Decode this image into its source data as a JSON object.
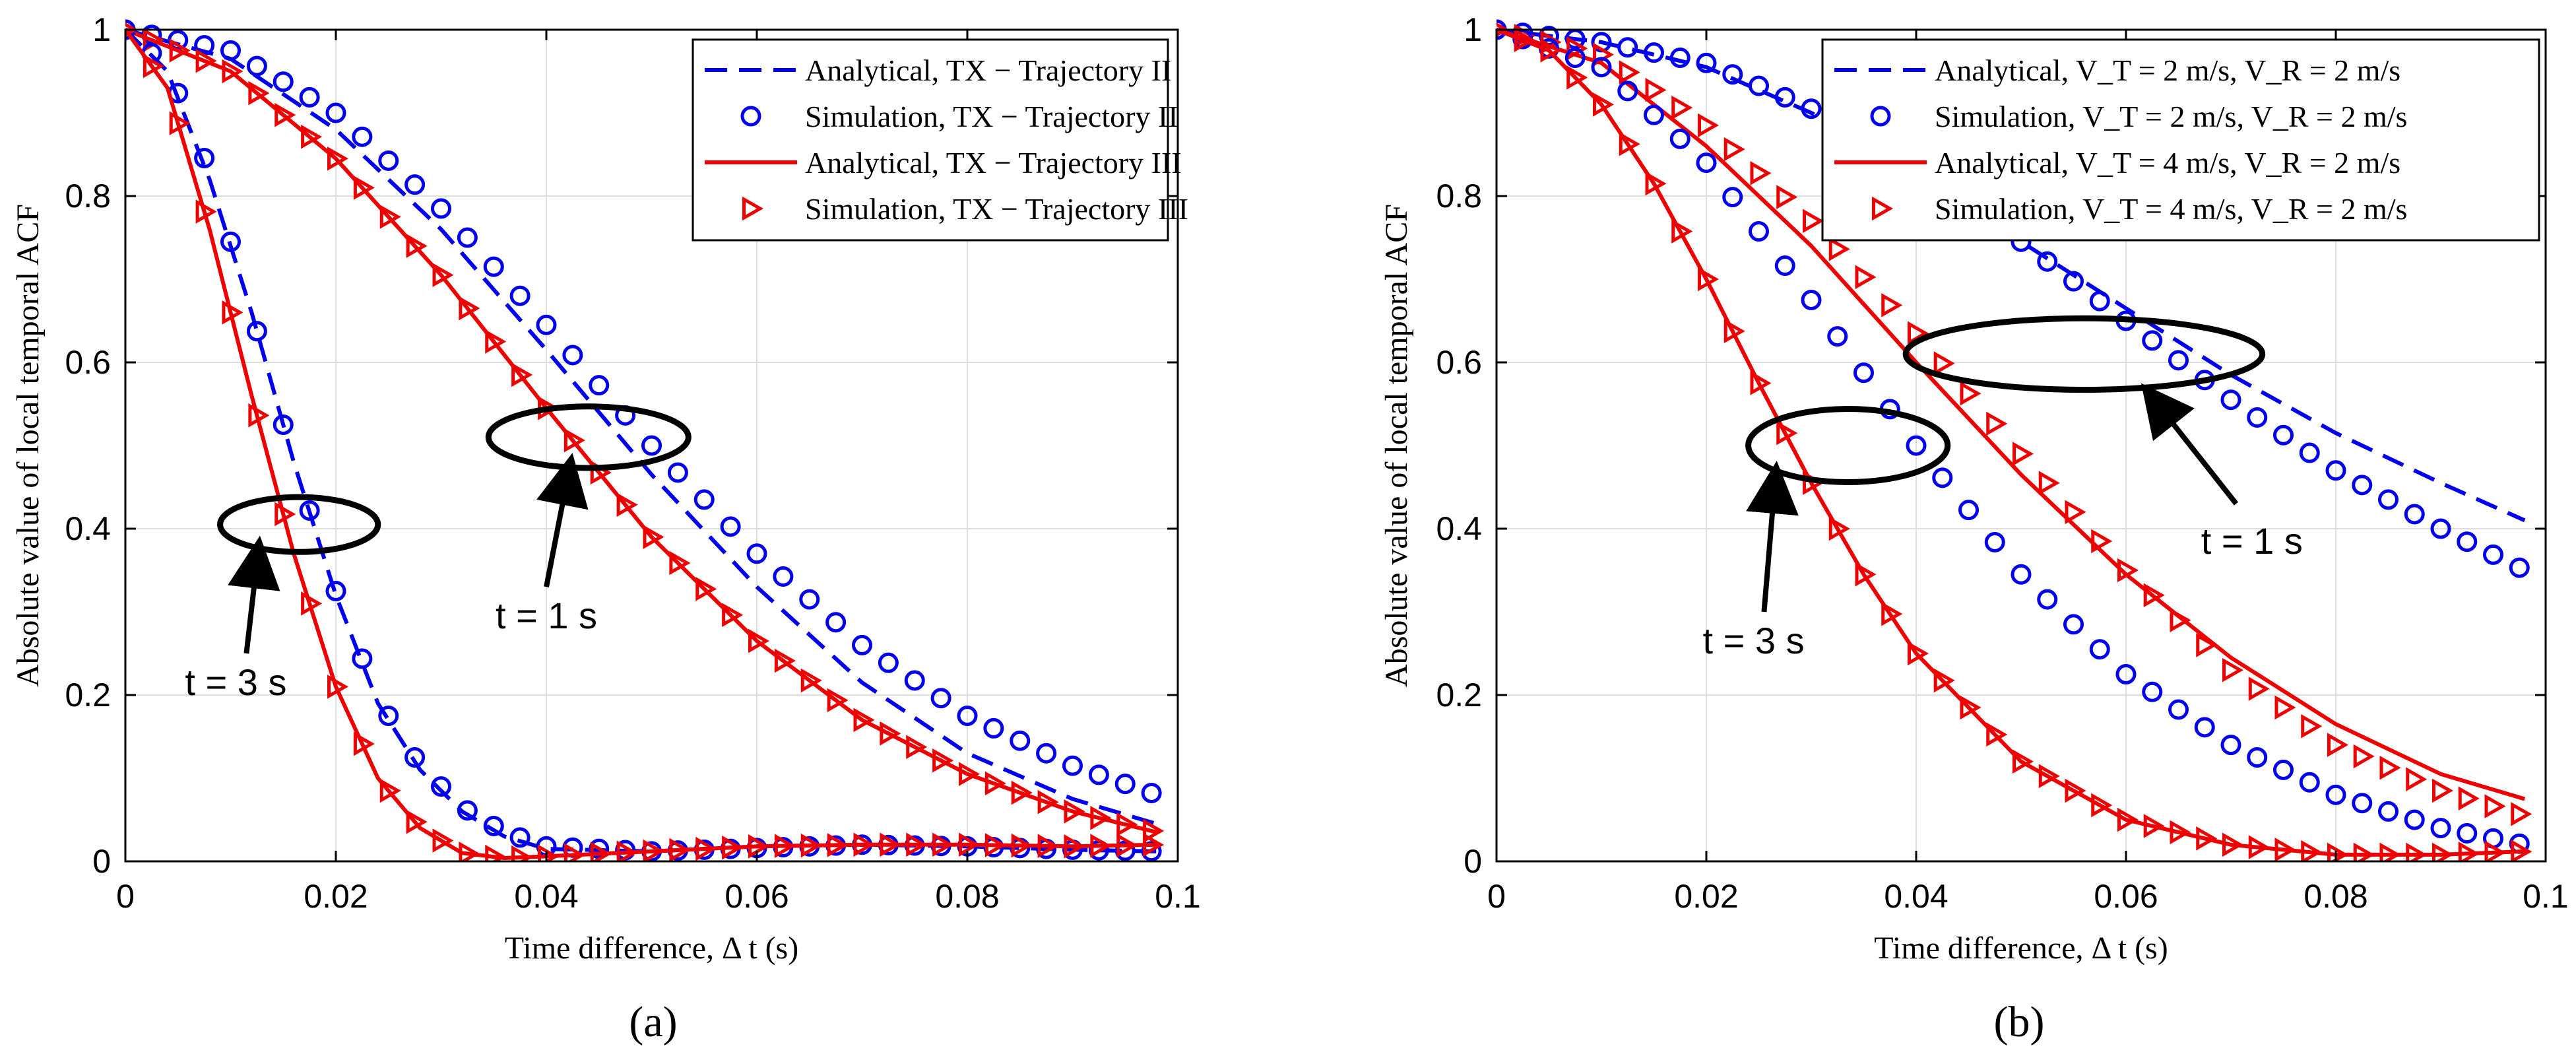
{
  "colors": {
    "blue": "#0000ee",
    "red": "#ee0000",
    "black": "#000000",
    "grid": "#dedede"
  },
  "chart_data": [
    {
      "type": "line",
      "panel_label": "(a)",
      "xlabel": "Time difference, Δ t (s)",
      "ylabel": "Absolute value of local temporal ACF",
      "xlim": [
        0,
        0.1
      ],
      "ylim": [
        0,
        1
      ],
      "xticks": [
        0,
        0.02,
        0.04,
        0.06,
        0.08,
        0.1
      ],
      "yticks": [
        0,
        0.2,
        0.4,
        0.6,
        0.8,
        1
      ],
      "xtick_labels": [
        "0",
        "0.02",
        "0.04",
        "0.06",
        "0.08",
        "0.1"
      ],
      "ytick_labels": [
        "0",
        "0.2",
        "0.4",
        "0.6",
        "0.8",
        "1"
      ],
      "grid": true,
      "legend_position": "top-right",
      "legend": [
        {
          "label": "Analytical, TX − Trajectory II",
          "color": "blue",
          "style": "dashed"
        },
        {
          "label": "Simulation, TX − Trajectory II",
          "color": "blue",
          "style": "circle"
        },
        {
          "label": "Analytical, TX − Trajectory III",
          "color": "red",
          "style": "solid"
        },
        {
          "label": "Simulation, TX − Trajectory III",
          "color": "red",
          "style": "triangle"
        }
      ],
      "series": [
        {
          "name": "Analytical, TX − Trajectory II (t = 1 s)",
          "color": "blue",
          "style": "dashed",
          "x": [
            0,
            0.01,
            0.02,
            0.03,
            0.04,
            0.05,
            0.06,
            0.07,
            0.08,
            0.09,
            0.098
          ],
          "y": [
            1,
            0.965,
            0.88,
            0.76,
            0.615,
            0.465,
            0.33,
            0.215,
            0.13,
            0.075,
            0.045
          ]
        },
        {
          "name": "Simulation, TX − Trajectory II (t = 1 s)",
          "color": "blue",
          "style": "circle",
          "x": [
            0,
            0.01,
            0.02,
            0.03,
            0.04,
            0.05,
            0.06,
            0.07,
            0.08,
            0.09,
            0.098
          ],
          "y": [
            1,
            0.975,
            0.9,
            0.785,
            0.645,
            0.5,
            0.37,
            0.26,
            0.175,
            0.115,
            0.08
          ]
        },
        {
          "name": "Analytical, TX − Trajectory III (t = 1 s)",
          "color": "red",
          "style": "solid",
          "x": [
            0,
            0.01,
            0.02,
            0.03,
            0.04,
            0.05,
            0.06,
            0.07,
            0.08,
            0.09,
            0.098
          ],
          "y": [
            1,
            0.95,
            0.845,
            0.705,
            0.545,
            0.39,
            0.265,
            0.17,
            0.105,
            0.06,
            0.035
          ]
        },
        {
          "name": "Simulation, TX − Trajectory III (t = 1 s)",
          "color": "red",
          "style": "triangle",
          "x": [
            0,
            0.01,
            0.02,
            0.03,
            0.04,
            0.05,
            0.06,
            0.07,
            0.08,
            0.09,
            0.098
          ],
          "y": [
            1,
            0.95,
            0.845,
            0.705,
            0.545,
            0.39,
            0.265,
            0.17,
            0.105,
            0.06,
            0.035
          ]
        },
        {
          "name": "Analytical, TX − Trajectory II (t = 3 s)",
          "color": "blue",
          "style": "dashed",
          "x": [
            0,
            0.004,
            0.008,
            0.012,
            0.016,
            0.02,
            0.024,
            0.028,
            0.032,
            0.036,
            0.04,
            0.05,
            0.06,
            0.07,
            0.08,
            0.09,
            0.098
          ],
          "y": [
            1,
            0.95,
            0.82,
            0.66,
            0.48,
            0.32,
            0.19,
            0.11,
            0.06,
            0.03,
            0.015,
            0.012,
            0.018,
            0.02,
            0.018,
            0.014,
            0.012
          ]
        },
        {
          "name": "Simulation, TX − Trajectory II (t = 3 s)",
          "color": "blue",
          "style": "circle",
          "x": [
            0,
            0.004,
            0.008,
            0.012,
            0.016,
            0.02,
            0.024,
            0.028,
            0.032,
            0.036,
            0.04,
            0.05,
            0.06,
            0.07,
            0.08,
            0.09,
            0.098
          ],
          "y": [
            1,
            0.955,
            0.83,
            0.66,
            0.48,
            0.325,
            0.195,
            0.115,
            0.065,
            0.035,
            0.018,
            0.012,
            0.016,
            0.02,
            0.018,
            0.014,
            0.012
          ]
        },
        {
          "name": "Analytical, TX − Trajectory III (t = 3 s)",
          "color": "red",
          "style": "solid",
          "x": [
            0,
            0.004,
            0.008,
            0.012,
            0.016,
            0.02,
            0.024,
            0.028,
            0.032,
            0.036,
            0.04,
            0.05,
            0.06,
            0.07,
            0.08,
            0.09,
            0.098
          ],
          "y": [
            1,
            0.93,
            0.76,
            0.56,
            0.37,
            0.21,
            0.1,
            0.04,
            0.01,
            0.004,
            0.006,
            0.012,
            0.018,
            0.02,
            0.02,
            0.018,
            0.02
          ]
        },
        {
          "name": "Simulation, TX − Trajectory III (t = 3 s)",
          "color": "red",
          "style": "triangle",
          "x": [
            0,
            0.004,
            0.008,
            0.012,
            0.016,
            0.02,
            0.024,
            0.028,
            0.032,
            0.036,
            0.04,
            0.05,
            0.06,
            0.07,
            0.08,
            0.09,
            0.098
          ],
          "y": [
            1,
            0.93,
            0.76,
            0.56,
            0.37,
            0.21,
            0.1,
            0.04,
            0.01,
            0.004,
            0.006,
            0.012,
            0.018,
            0.02,
            0.02,
            0.018,
            0.02
          ]
        }
      ],
      "annotations": [
        {
          "text": "t = 1 s",
          "ellipse_center": [
            0.044,
            0.51
          ],
          "ellipse_radii": [
            0.0095,
            0.037
          ],
          "arrow_from": [
            0.04,
            0.33
          ],
          "arrow_to": [
            0.042,
            0.46
          ],
          "text_at": [
            0.04,
            0.28
          ]
        },
        {
          "text": "t = 3 s",
          "ellipse_center": [
            0.0165,
            0.405
          ],
          "ellipse_radii": [
            0.0075,
            0.033
          ],
          "arrow_from": [
            0.0115,
            0.25
          ],
          "arrow_to": [
            0.0125,
            0.36
          ],
          "text_at": [
            0.0105,
            0.2
          ]
        }
      ]
    },
    {
      "type": "line",
      "panel_label": "(b)",
      "xlabel": "Time difference, Δ t (s)",
      "ylabel": "Absolute value of local temporal ACF",
      "xlim": [
        0,
        0.1
      ],
      "ylim": [
        0,
        1
      ],
      "xticks": [
        0,
        0.02,
        0.04,
        0.06,
        0.08,
        0.1
      ],
      "yticks": [
        0,
        0.2,
        0.4,
        0.6,
        0.8,
        1
      ],
      "xtick_labels": [
        "0",
        "0.02",
        "0.04",
        "0.06",
        "0.08",
        "0.1"
      ],
      "ytick_labels": [
        "0",
        "0.2",
        "0.4",
        "0.6",
        "0.8",
        "1"
      ],
      "grid": true,
      "legend_position": "top-right",
      "legend": [
        {
          "label": "Analytical, V_T = 2 m/s, V_R = 2 m/s",
          "color": "blue",
          "style": "dashed"
        },
        {
          "label": "Simulation, V_T = 2 m/s, V_R = 2 m/s",
          "color": "blue",
          "style": "circle"
        },
        {
          "label": "Analytical, V_T = 4 m/s, V_R = 2 m/s",
          "color": "red",
          "style": "solid"
        },
        {
          "label": "Simulation, V_T = 4 m/s, V_R = 2 m/s",
          "color": "red",
          "style": "triangle"
        }
      ],
      "series": [
        {
          "name": "Analytical, V_T = 2 m/s, V_R = 2 m/s (t = 1 s)",
          "color": "blue",
          "style": "dashed",
          "x": [
            0,
            0.01,
            0.02,
            0.03,
            0.04,
            0.05,
            0.06,
            0.07,
            0.08,
            0.09,
            0.098
          ],
          "y": [
            1,
            0.985,
            0.955,
            0.9,
            0.83,
            0.745,
            0.665,
            0.585,
            0.515,
            0.455,
            0.41
          ]
        },
        {
          "name": "Simulation, V_T = 2 m/s, V_R = 2 m/s (t = 1 s)",
          "color": "blue",
          "style": "circle",
          "x": [
            0,
            0.01,
            0.02,
            0.03,
            0.04,
            0.05,
            0.06,
            0.07,
            0.08,
            0.09,
            0.098
          ],
          "y": [
            1,
            0.985,
            0.96,
            0.905,
            0.835,
            0.745,
            0.65,
            0.555,
            0.47,
            0.4,
            0.35
          ]
        },
        {
          "name": "Analytical, V_T = 4 m/s, V_R = 2 m/s (t = 1 s)",
          "color": "red",
          "style": "solid",
          "x": [
            0,
            0.01,
            0.02,
            0.03,
            0.04,
            0.05,
            0.06,
            0.07,
            0.08,
            0.09,
            0.098
          ],
          "y": [
            1,
            0.96,
            0.86,
            0.74,
            0.6,
            0.465,
            0.345,
            0.245,
            0.165,
            0.105,
            0.075
          ]
        },
        {
          "name": "Simulation, V_T = 4 m/s, V_R = 2 m/s (t = 1 s)",
          "color": "red",
          "style": "triangle",
          "x": [
            0,
            0.01,
            0.02,
            0.03,
            0.04,
            0.05,
            0.06,
            0.07,
            0.08,
            0.09,
            0.098
          ],
          "y": [
            1,
            0.97,
            0.885,
            0.77,
            0.635,
            0.49,
            0.35,
            0.23,
            0.14,
            0.085,
            0.055
          ]
        },
        {
          "name": "Simulation, V_T = 2 m/s, V_R = 2 m/s (t = 3 s)",
          "color": "blue",
          "style": "circle",
          "x": [
            0,
            0.01,
            0.02,
            0.03,
            0.04,
            0.05,
            0.06,
            0.07,
            0.08,
            0.09,
            0.098
          ],
          "y": [
            1,
            0.955,
            0.84,
            0.675,
            0.5,
            0.345,
            0.225,
            0.14,
            0.08,
            0.04,
            0.02
          ]
        },
        {
          "name": "Analytical, V_T = 4 m/s, V_R = 2 m/s (t = 3 s)",
          "color": "red",
          "style": "solid",
          "x": [
            0,
            0.005,
            0.01,
            0.015,
            0.02,
            0.025,
            0.03,
            0.035,
            0.04,
            0.05,
            0.06,
            0.07,
            0.08,
            0.09,
            0.098
          ],
          "y": [
            1,
            0.975,
            0.91,
            0.815,
            0.7,
            0.575,
            0.455,
            0.345,
            0.25,
            0.12,
            0.05,
            0.02,
            0.008,
            0.008,
            0.012
          ]
        },
        {
          "name": "Simulation, V_T = 4 m/s, V_R = 2 m/s (t = 3 s)",
          "color": "red",
          "style": "triangle",
          "x": [
            0,
            0.005,
            0.01,
            0.015,
            0.02,
            0.025,
            0.03,
            0.035,
            0.04,
            0.05,
            0.06,
            0.07,
            0.08,
            0.09,
            0.098
          ],
          "y": [
            1,
            0.975,
            0.91,
            0.815,
            0.7,
            0.575,
            0.455,
            0.345,
            0.25,
            0.12,
            0.05,
            0.02,
            0.008,
            0.008,
            0.012
          ]
        }
      ],
      "annotations": [
        {
          "text": "t = 1 s",
          "ellipse_center": [
            0.056,
            0.61
          ],
          "ellipse_radii": [
            0.017,
            0.043
          ],
          "arrow_from": [
            0.0705,
            0.43
          ],
          "arrow_to": [
            0.063,
            0.55
          ],
          "text_at": [
            0.072,
            0.37
          ]
        },
        {
          "text": "t = 3 s",
          "ellipse_center": [
            0.0335,
            0.5
          ],
          "ellipse_radii": [
            0.0095,
            0.044
          ],
          "arrow_from": [
            0.0255,
            0.3
          ],
          "arrow_to": [
            0.0265,
            0.45
          ],
          "text_at": [
            0.0245,
            0.25
          ]
        }
      ]
    }
  ]
}
